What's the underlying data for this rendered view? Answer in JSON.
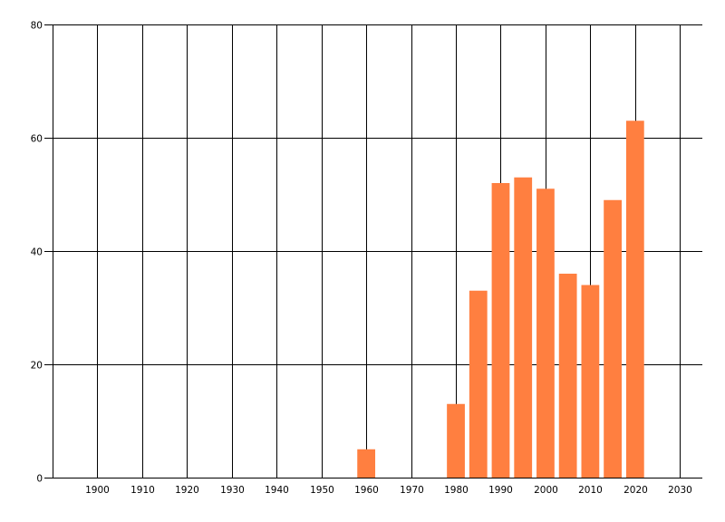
{
  "chart_data": {
    "type": "bar",
    "x": [
      1960,
      1980,
      1985,
      1990,
      1995,
      2000,
      2005,
      2010,
      2015,
      2020
    ],
    "values": [
      5,
      13,
      33,
      52,
      53,
      51,
      36,
      34,
      49,
      63
    ],
    "bar_width_years": 4,
    "xlim": [
      1890,
      2035
    ],
    "ylim": [
      0,
      80
    ],
    "x_ticks": [
      1900,
      1910,
      1920,
      1930,
      1940,
      1950,
      1960,
      1970,
      1980,
      1990,
      2000,
      2010,
      2020,
      2030
    ],
    "y_ticks": [
      0,
      20,
      40,
      60,
      80
    ],
    "grid": true,
    "title": "",
    "xlabel": "",
    "ylabel": "",
    "colors": {
      "bar": "#FF7F40",
      "grid": "#000000",
      "background": "#FFFFFF"
    }
  }
}
